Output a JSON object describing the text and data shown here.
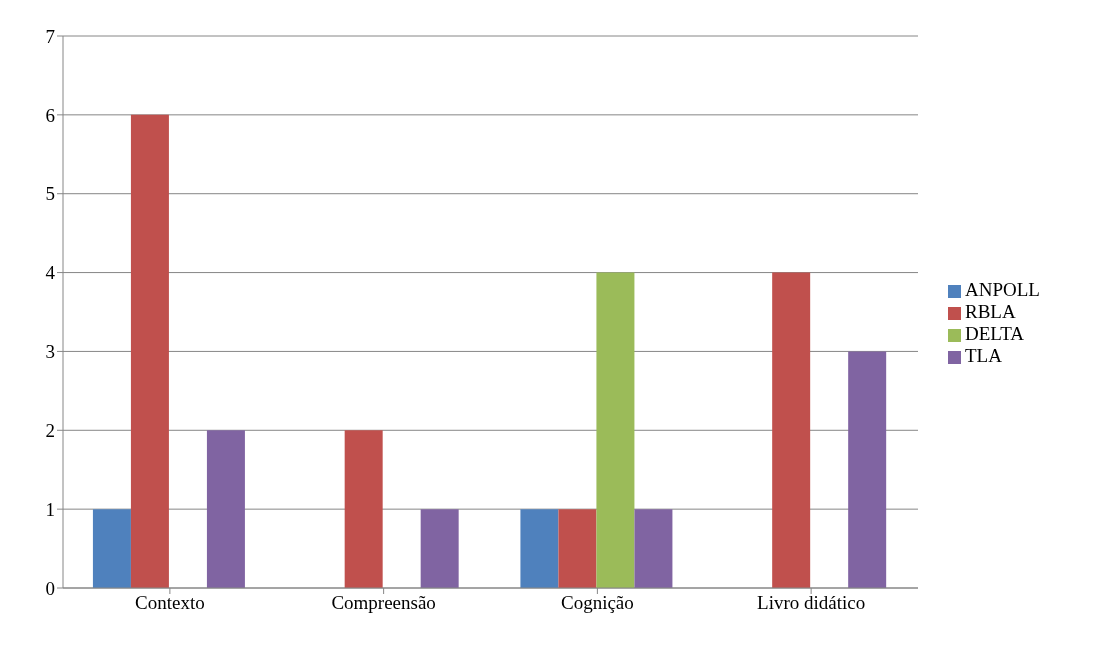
{
  "chart_data": {
    "type": "bar",
    "categories": [
      "Contexto",
      "Compreensão",
      "Cognição",
      "Livro didático"
    ],
    "series": [
      {
        "name": "ANPOLL",
        "color": "#4f81bd",
        "values": [
          1,
          0,
          1,
          0
        ]
      },
      {
        "name": "RBLA",
        "color": "#c0504d",
        "values": [
          6,
          2,
          1,
          4
        ]
      },
      {
        "name": "DELTA",
        "color": "#9bbb59",
        "values": [
          0,
          0,
          4,
          0
        ]
      },
      {
        "name": "TLA",
        "color": "#8064a2",
        "values": [
          2,
          1,
          1,
          3
        ]
      }
    ],
    "ylim": [
      0,
      7
    ],
    "yticks": [
      0,
      1,
      2,
      3,
      4,
      5,
      6,
      7
    ],
    "grid": "y",
    "legend": "right"
  }
}
